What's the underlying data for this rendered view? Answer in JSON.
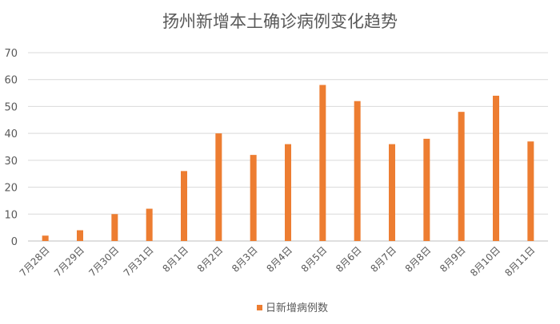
{
  "chart_data": {
    "type": "bar",
    "title": "扬州新增本土确诊病例变化趋势",
    "categories": [
      "7月28日",
      "7月29日",
      "7月30日",
      "7月31日",
      "8月1日",
      "8月2日",
      "8月3日",
      "8月4日",
      "8月5日",
      "8月6日",
      "8月7日",
      "8月8日",
      "8月9日",
      "8月10日",
      "8月11日"
    ],
    "series": [
      {
        "name": "日新增病例数",
        "color": "#ED7D31",
        "values": [
          2,
          4,
          10,
          12,
          26,
          40,
          32,
          36,
          58,
          52,
          36,
          38,
          48,
          54,
          37
        ]
      }
    ],
    "ylim": [
      0,
      70
    ],
    "yticks": [
      0,
      10,
      20,
      30,
      40,
      50,
      60,
      70
    ],
    "grid": true,
    "legend": "bottom"
  }
}
